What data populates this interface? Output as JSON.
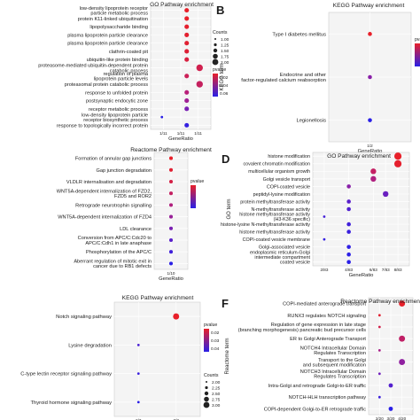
{
  "chart_data": [
    {
      "panel_letter": "",
      "type": "scatter",
      "title": "GO Pathway enrichment",
      "xlabel": "GeneRatio",
      "ylabel": "",
      "x_ticks": [
        "1/11",
        "1/11",
        "1/11"
      ],
      "xlim": [
        0.0,
        1.0
      ],
      "categories": [
        "low-density lipoprotein receptor particle metabolic process",
        "protein K11-linked ubiquitination",
        "lipopolysaccharide binding",
        "plasma lipoprotein particle clearance",
        "plasma lipoprotein particle clearance",
        "clathrin-coated pit",
        "ubiquitin-like protein binding",
        "proteasome-mediated ubiquitin-dependent protein catabolic process",
        "regulation of plasma lipoprotein particle levels",
        "proteasomal protein catabolic process",
        "response to unfolded protein",
        "postsynaptic endocytic zone",
        "receptor metabolic process",
        "low-density lipoprotein particle receptor biosynthetic process",
        "response to topologically incorrect protein"
      ],
      "points": [
        {
          "x": 0.62,
          "size": 1,
          "color": "#e8202a"
        },
        {
          "x": 0.62,
          "size": 1,
          "color": "#e8202a"
        },
        {
          "x": 0.62,
          "size": 1,
          "color": "#e5202e"
        },
        {
          "x": 0.62,
          "size": 1,
          "color": "#e3202f"
        },
        {
          "x": 0.62,
          "size": 1,
          "color": "#e02032"
        },
        {
          "x": 0.62,
          "size": 1,
          "color": "#dd2036"
        },
        {
          "x": 0.62,
          "size": 1,
          "color": "#d82040"
        },
        {
          "x": 0.88,
          "size": 2,
          "color": "#d0204e"
        },
        {
          "x": 0.62,
          "size": 1,
          "color": "#cc2058"
        },
        {
          "x": 0.88,
          "size": 2,
          "color": "#c4205e"
        },
        {
          "x": 0.62,
          "size": 1,
          "color": "#b8207a"
        },
        {
          "x": 0.62,
          "size": 1,
          "color": "#a02094"
        },
        {
          "x": 0.62,
          "size": 1,
          "color": "#7a20b4"
        },
        {
          "x": 0.12,
          "size": 0,
          "color": "#2a20e6"
        },
        {
          "x": 0.62,
          "size": 1,
          "color": "#3420e0"
        }
      ],
      "legend": {
        "size_title": "Counts",
        "size_labels": [
          "1.00",
          "1.25",
          "1.50",
          "1.75",
          "2.00"
        ],
        "color_title": "pvalue",
        "color_labels": [
          "0.02",
          "0.04",
          "0.06"
        ]
      }
    },
    {
      "panel_letter": "B",
      "type": "scatter",
      "title": "KEGG Pathway enrichment",
      "xlabel": "GeneRatio",
      "ylabel": "KEGG term",
      "x_ticks": [
        "1/2"
      ],
      "xlim": [
        0.0,
        1.0
      ],
      "categories": [
        "Type I diabetes mellitus",
        "Endocrine and other factor-regulated calcium reabsorption",
        "Legionellosis"
      ],
      "points": [
        {
          "x": 0.5,
          "size": 1,
          "color": "#e8202a"
        },
        {
          "x": 0.5,
          "size": 1,
          "color": "#8a20a8"
        },
        {
          "x": 0.5,
          "size": 1,
          "color": "#2a20e6"
        }
      ],
      "legend": {
        "size_title": "",
        "size_labels": [],
        "color_title": "pvalue",
        "color_labels": []
      }
    },
    {
      "panel_letter": "",
      "type": "scatter",
      "title": "Reactome Pathway enrichment",
      "xlabel": "GeneRatio",
      "ylabel": "",
      "x_ticks": [
        "1/10"
      ],
      "xlim": [
        0.0,
        1.0
      ],
      "categories": [
        "Formation of annular gap junctions",
        "Gap junction degradation",
        "VLDLR internalisation and degradation",
        "WNT5A-dependent internalization of FZD2, FZD5 and ROR2",
        "Retrograde neurotrophin signalling",
        "WNT5A-dependent internalization of FZD4",
        "LDL clearance",
        "Conversion from APC/C:Cdc20 to APC/C:Cdh1 in late anaphase",
        "Phosphorylation of the APC/C",
        "Aberrant regulation of mitotic exit in cancer due to RB1 defects"
      ],
      "points": [
        {
          "x": 0.5,
          "size": 1,
          "color": "#e8202a"
        },
        {
          "x": 0.5,
          "size": 1,
          "color": "#e02032"
        },
        {
          "x": 0.5,
          "size": 1,
          "color": "#d42046"
        },
        {
          "x": 0.5,
          "size": 1,
          "color": "#c42062"
        },
        {
          "x": 0.5,
          "size": 1,
          "color": "#b0207e"
        },
        {
          "x": 0.5,
          "size": 1,
          "color": "#982098"
        },
        {
          "x": 0.5,
          "size": 1,
          "color": "#7a20b2"
        },
        {
          "x": 0.5,
          "size": 1,
          "color": "#5a20ca"
        },
        {
          "x": 0.5,
          "size": 1,
          "color": "#4020da"
        },
        {
          "x": 0.5,
          "size": 1,
          "color": "#2a20e6"
        }
      ],
      "legend": {
        "size_title": "",
        "size_labels": [],
        "color_title": "pvalue",
        "color_labels": []
      }
    },
    {
      "panel_letter": "D",
      "type": "scatter",
      "title": "GO Pathway enrichment",
      "xlabel": "GeneRatio",
      "ylabel": "GO term",
      "x_ticks": [
        "2/83",
        "4/83",
        "6/83",
        "7/83",
        "8/83"
      ],
      "xlim": [
        1.5,
        8.5
      ],
      "categories": [
        "histone modification",
        "covalent chromatin modification",
        "multicellular organism growth",
        "Golgi vesicle transport",
        "COPI-coated vesicle",
        "peptidyl-lysine modification",
        "protein methyltransferase activity",
        "N-methyltransferase activity",
        "histone methyltransferase activity (H3-K36 specific)",
        "histone-lysine N-methyltransferase activity",
        "histone methyltransferase activity",
        "COPI-coated vesicle membrane",
        "Golgi-associated vesicle",
        "endoplasmic reticulum-Golgi intermediate compartment",
        "coated vesicle"
      ],
      "points": [
        {
          "x": 8,
          "size": 3,
          "color": "#e8202a"
        },
        {
          "x": 8,
          "size": 3,
          "color": "#e5202e"
        },
        {
          "x": 6,
          "size": 2,
          "color": "#c42064"
        },
        {
          "x": 6,
          "size": 2,
          "color": "#b02080"
        },
        {
          "x": 4,
          "size": 1,
          "color": "#8a20a8"
        },
        {
          "x": 7,
          "size": 2,
          "color": "#6a20c0"
        },
        {
          "x": 4,
          "size": 1,
          "color": "#5a20cc"
        },
        {
          "x": 4,
          "size": 1,
          "color": "#5020d0"
        },
        {
          "x": 2,
          "size": 0,
          "color": "#4420d8"
        },
        {
          "x": 4,
          "size": 1,
          "color": "#4020da"
        },
        {
          "x": 4,
          "size": 1,
          "color": "#3a20de"
        },
        {
          "x": 2,
          "size": 0,
          "color": "#3420e2"
        },
        {
          "x": 4,
          "size": 1,
          "color": "#3020e4"
        },
        {
          "x": 4,
          "size": 1,
          "color": "#2c20e6"
        },
        {
          "x": 4,
          "size": 1,
          "color": "#2a20e8"
        }
      ],
      "legend": {
        "size_title": "",
        "size_labels": [],
        "color_title": "",
        "color_labels": []
      }
    },
    {
      "panel_letter": "",
      "type": "scatter",
      "title": "KEGG Pathway enrichment",
      "xlabel": "GeneRatio",
      "ylabel": "",
      "x_ticks": [
        "2/3",
        "3/3"
      ],
      "xlim": [
        1.5,
        3.5
      ],
      "categories": [
        "Notch signaling pathway",
        "Lysine degradation",
        "C-type lectin receptor signaling pathway",
        "Thyroid hormone signaling pathway"
      ],
      "points": [
        {
          "x": 3,
          "size": 2,
          "color": "#e8202a"
        },
        {
          "x": 2,
          "size": 0,
          "color": "#4a20d4"
        },
        {
          "x": 2,
          "size": 0,
          "color": "#3a20de"
        },
        {
          "x": 2,
          "size": 0,
          "color": "#2a20e6"
        }
      ],
      "legend": {
        "size_title": "Counts",
        "size_labels": [
          "2.00",
          "2.25",
          "2.50",
          "2.75",
          "3.00"
        ],
        "color_title": "pvalue",
        "color_labels": [
          "0.02",
          "0.03",
          "0.04"
        ]
      }
    },
    {
      "panel_letter": "F",
      "type": "scatter",
      "title": "Reactome Pathway enrichment",
      "xlabel": "",
      "ylabel": "Reactome term",
      "x_ticks": [
        "2/20",
        "3/20",
        "4/20"
      ],
      "xlim": [
        1.5,
        4.5
      ],
      "categories": [
        "COPI-mediated anterograde transport",
        "RUNX3 regulates NOTCH signaling",
        "Regulation of gene expression in late stage (branching morphogenesis) pancreatic bud precursor cells",
        "ER to Golgi Anterograde Transport",
        "NOTCH4 Intracellular Domain Regulates Transcription",
        "Transport to the Golgi and subsequent modification",
        "NOTCH3 Intracellular Domain Regulates Transcription",
        "Intra-Golgi and retrograde Golgi-to-ER traffic",
        "NOTCH-HLH transcription pathway",
        "COPI-dependent Golgi-to-ER retrograde traffic"
      ],
      "points": [
        {
          "x": 4,
          "size": 2,
          "color": "#e8202a"
        },
        {
          "x": 2,
          "size": 0,
          "color": "#e02030"
        },
        {
          "x": 2,
          "size": 0,
          "color": "#d2204a"
        },
        {
          "x": 4,
          "size": 2,
          "color": "#c02066"
        },
        {
          "x": 2,
          "size": 0,
          "color": "#a82088"
        },
        {
          "x": 4,
          "size": 2,
          "color": "#9020a0"
        },
        {
          "x": 2,
          "size": 0,
          "color": "#7020bc"
        },
        {
          "x": 3,
          "size": 1,
          "color": "#5420ce"
        },
        {
          "x": 2,
          "size": 0,
          "color": "#3c20dc"
        },
        {
          "x": 3,
          "size": 1,
          "color": "#2a20e6"
        }
      ],
      "legend": {
        "size_title": "",
        "size_labels": [],
        "color_title": "",
        "color_labels": []
      }
    }
  ]
}
